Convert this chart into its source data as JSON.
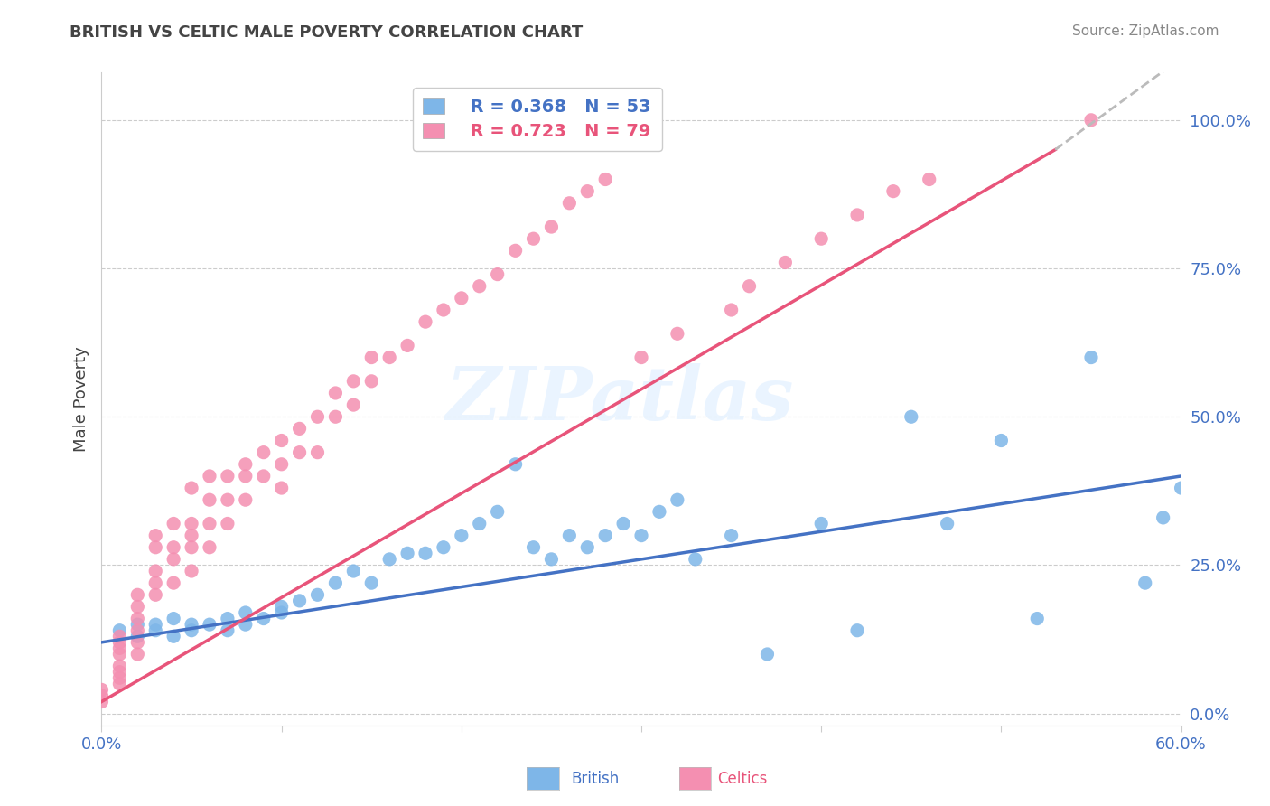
{
  "title": "BRITISH VS CELTIC MALE POVERTY CORRELATION CHART",
  "source": "Source: ZipAtlas.com",
  "ylabel": "Male Poverty",
  "xlim": [
    0.0,
    0.6
  ],
  "ylim": [
    -0.02,
    1.08
  ],
  "ytick_values": [
    0.0,
    0.25,
    0.5,
    0.75,
    1.0
  ],
  "ytick_labels": [
    "0.0%",
    "25.0%",
    "50.0%",
    "75.0%",
    "100.0%"
  ],
  "xtick_values": [
    0.0,
    0.1,
    0.2,
    0.3,
    0.4,
    0.5,
    0.6
  ],
  "xtick_labels": [
    "0.0%",
    "",
    "",
    "",
    "",
    "",
    "60.0%"
  ],
  "british_color": "#7EB6E8",
  "celtics_color": "#F48FB1",
  "british_line_color": "#4472C4",
  "celtics_line_color": "#E8547A",
  "regression_ext_color": "#BBBBBB",
  "legend_R_british": "R = 0.368",
  "legend_N_british": "N = 53",
  "legend_R_celtics": "R = 0.723",
  "legend_N_celtics": "N = 79",
  "british_label": "British",
  "celtics_label": "Celtics",
  "british_line": [
    0.0,
    0.12,
    0.6,
    0.4
  ],
  "celtics_line_solid": [
    0.0,
    0.02,
    0.53,
    0.95
  ],
  "celtics_line_dashed": [
    0.53,
    0.95,
    0.68,
    1.28
  ],
  "british_scatter_x": [
    0.01,
    0.02,
    0.02,
    0.03,
    0.03,
    0.04,
    0.04,
    0.05,
    0.05,
    0.06,
    0.07,
    0.07,
    0.08,
    0.08,
    0.09,
    0.1,
    0.1,
    0.11,
    0.12,
    0.13,
    0.14,
    0.15,
    0.16,
    0.17,
    0.18,
    0.19,
    0.2,
    0.21,
    0.22,
    0.23,
    0.24,
    0.25,
    0.26,
    0.27,
    0.28,
    0.29,
    0.3,
    0.31,
    0.32,
    0.33,
    0.35,
    0.37,
    0.4,
    0.42,
    0.45,
    0.47,
    0.5,
    0.52,
    0.55,
    0.58,
    0.59,
    0.6,
    0.61
  ],
  "british_scatter_y": [
    0.14,
    0.13,
    0.15,
    0.14,
    0.15,
    0.13,
    0.16,
    0.14,
    0.15,
    0.15,
    0.14,
    0.16,
    0.17,
    0.15,
    0.16,
    0.17,
    0.18,
    0.19,
    0.2,
    0.22,
    0.24,
    0.22,
    0.26,
    0.27,
    0.27,
    0.28,
    0.3,
    0.32,
    0.34,
    0.42,
    0.28,
    0.26,
    0.3,
    0.28,
    0.3,
    0.32,
    0.3,
    0.34,
    0.36,
    0.26,
    0.3,
    0.1,
    0.32,
    0.14,
    0.5,
    0.32,
    0.46,
    0.16,
    0.6,
    0.22,
    0.33,
    0.38,
    0.4
  ],
  "celtics_scatter_x": [
    0.0,
    0.0,
    0.0,
    0.01,
    0.01,
    0.01,
    0.01,
    0.01,
    0.01,
    0.01,
    0.01,
    0.02,
    0.02,
    0.02,
    0.02,
    0.02,
    0.02,
    0.03,
    0.03,
    0.03,
    0.03,
    0.03,
    0.04,
    0.04,
    0.04,
    0.04,
    0.05,
    0.05,
    0.05,
    0.05,
    0.05,
    0.06,
    0.06,
    0.06,
    0.06,
    0.07,
    0.07,
    0.07,
    0.08,
    0.08,
    0.08,
    0.09,
    0.09,
    0.1,
    0.1,
    0.1,
    0.11,
    0.11,
    0.12,
    0.12,
    0.13,
    0.13,
    0.14,
    0.14,
    0.15,
    0.15,
    0.16,
    0.17,
    0.18,
    0.19,
    0.2,
    0.21,
    0.22,
    0.23,
    0.24,
    0.25,
    0.26,
    0.27,
    0.28,
    0.3,
    0.32,
    0.35,
    0.36,
    0.38,
    0.4,
    0.42,
    0.44,
    0.46,
    0.55
  ],
  "celtics_scatter_y": [
    0.02,
    0.03,
    0.04,
    0.05,
    0.06,
    0.07,
    0.08,
    0.1,
    0.11,
    0.12,
    0.13,
    0.1,
    0.12,
    0.14,
    0.16,
    0.18,
    0.2,
    0.2,
    0.22,
    0.24,
    0.28,
    0.3,
    0.22,
    0.26,
    0.28,
    0.32,
    0.24,
    0.28,
    0.3,
    0.32,
    0.38,
    0.28,
    0.32,
    0.36,
    0.4,
    0.32,
    0.36,
    0.4,
    0.36,
    0.4,
    0.42,
    0.4,
    0.44,
    0.38,
    0.42,
    0.46,
    0.44,
    0.48,
    0.44,
    0.5,
    0.5,
    0.54,
    0.52,
    0.56,
    0.56,
    0.6,
    0.6,
    0.62,
    0.66,
    0.68,
    0.7,
    0.72,
    0.74,
    0.78,
    0.8,
    0.82,
    0.86,
    0.88,
    0.9,
    0.6,
    0.64,
    0.68,
    0.72,
    0.76,
    0.8,
    0.84,
    0.88,
    0.9,
    1.0
  ],
  "watermark_text": "ZIPatlas",
  "title_color": "#444444",
  "ylabel_color": "#444444",
  "tick_color": "#4472C4",
  "grid_color": "#CCCCCC",
  "source_color": "#888888"
}
